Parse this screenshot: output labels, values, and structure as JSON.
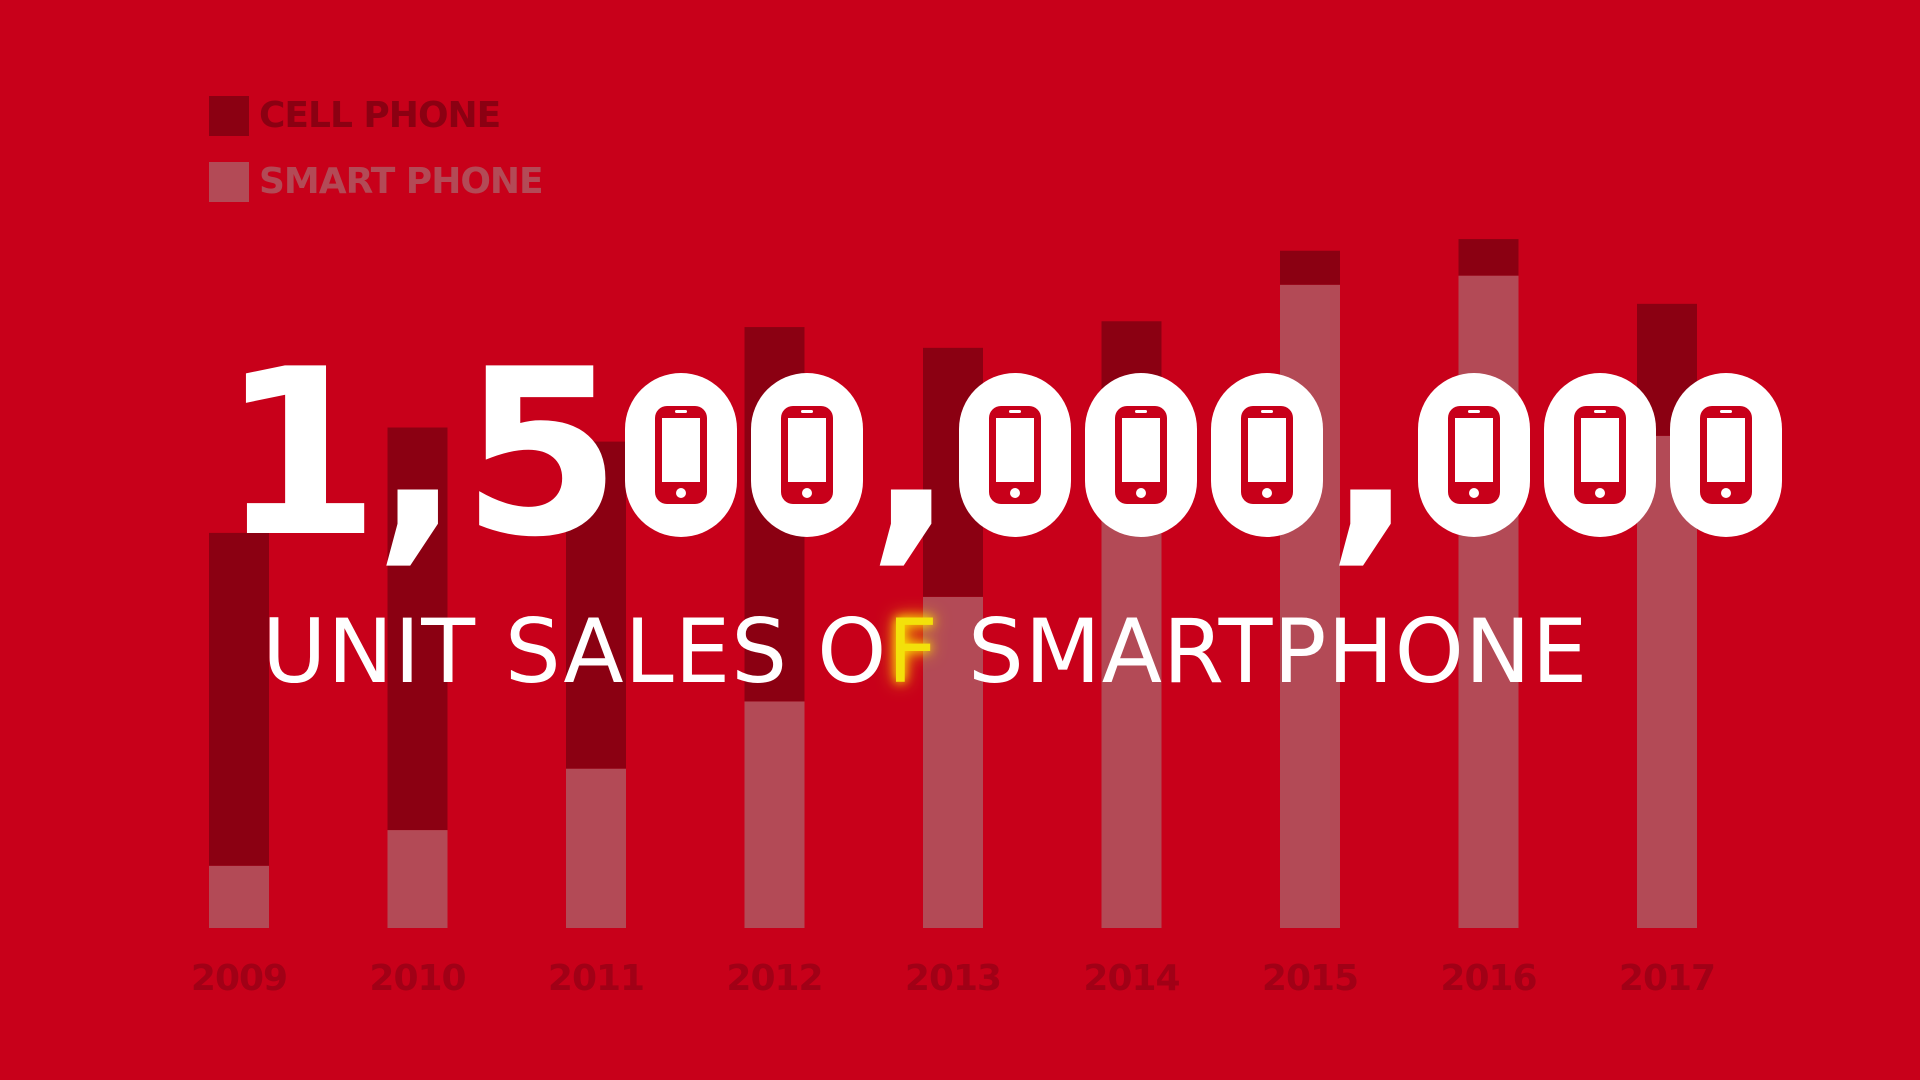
{
  "colors": {
    "background": "#c8001a",
    "cell_phone": "#8b0012",
    "smart_phone": "#b34a56",
    "year_label": "#a10016",
    "headline": "#ffffff",
    "highlight": "#f3e10a"
  },
  "legend": {
    "cell_phone_label": "CELL PHONE",
    "smart_phone_label": "SMART PHONE"
  },
  "headline": {
    "number": "1,500,000,000",
    "zero_icon": "smartphone-icon"
  },
  "subtitle": {
    "before": "UNIT SALES O",
    "highlight": "F",
    "after": " SMARTPHONE"
  },
  "chart_data": {
    "type": "bar",
    "stacked": true,
    "categories": [
      "2009",
      "2010",
      "2011",
      "2012",
      "2013",
      "2014",
      "2015",
      "2016",
      "2017"
    ],
    "series": [
      {
        "name": "CELL PHONE",
        "values": [
          0.401,
          0.485,
          0.394,
          0.451,
          0.3,
          0.159,
          0.041,
          0.044,
          0.159
        ]
      },
      {
        "name": "SMART PHONE",
        "values": [
          0.075,
          0.118,
          0.192,
          0.273,
          0.399,
          0.572,
          0.775,
          0.786,
          0.593
        ]
      }
    ],
    "ylim": [
      0,
      1
    ],
    "legend_position": "top-left",
    "grid": false
  }
}
